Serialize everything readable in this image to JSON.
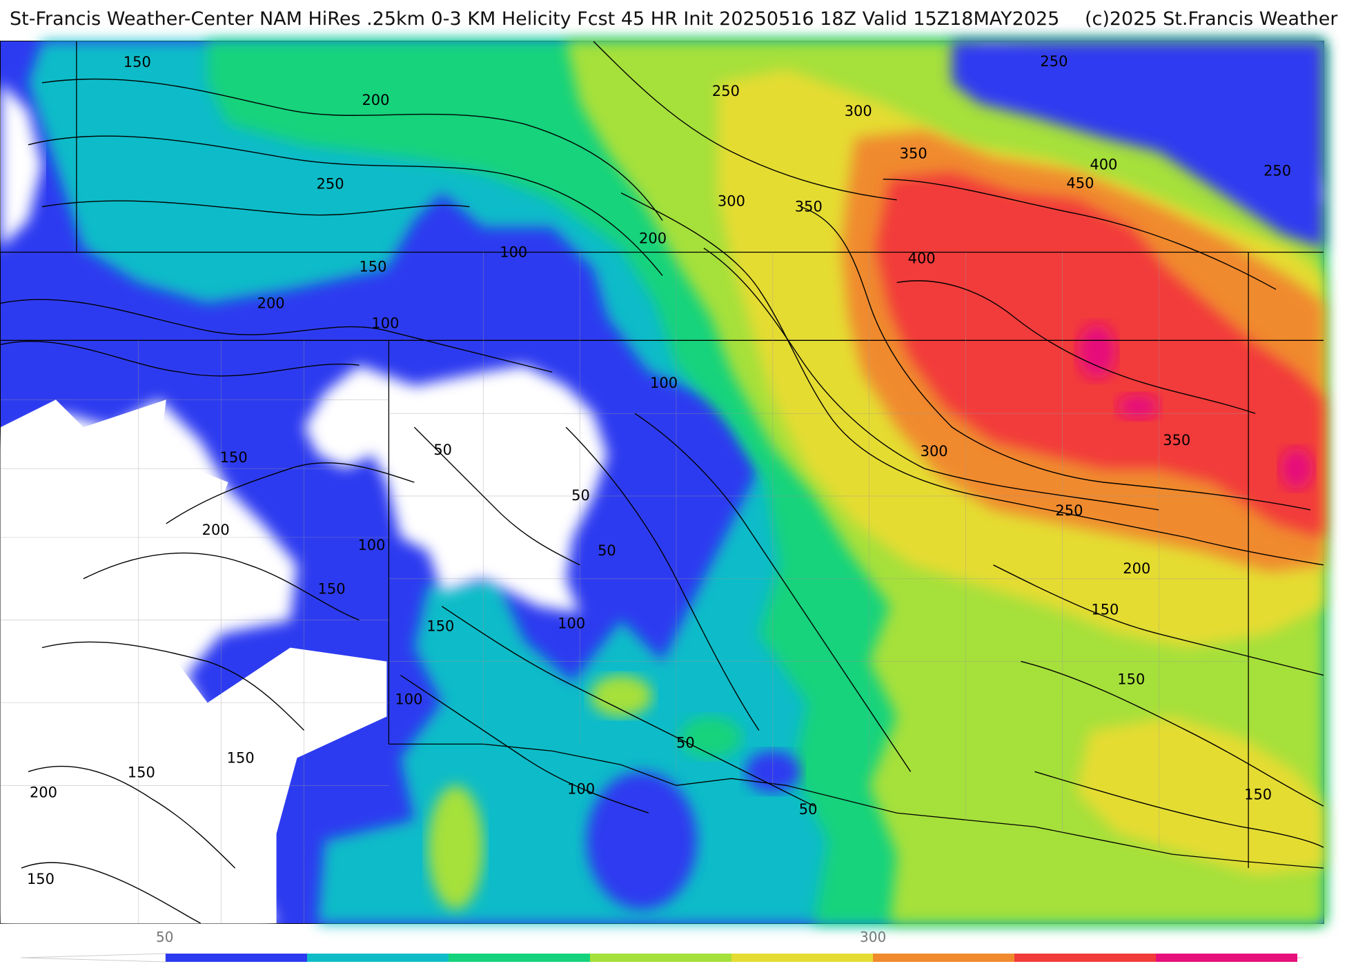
{
  "header": {
    "title_main": "St-Francis Weather-Center NAM HiRes .25km 0-3 KM Helicity Fcst 45 HR Init 20250516 18Z  Valid 15Z18MAY2025",
    "copyright": "(c)2025 St.Francis Weather"
  },
  "legend": {
    "ticks": [
      {
        "value": "50"
      },
      {
        "value": "300"
      }
    ],
    "bins": [
      {
        "from": 50,
        "to": 100,
        "color": "#2d3bf0"
      },
      {
        "from": 100,
        "to": 150,
        "color": "#0ebcc8"
      },
      {
        "from": 150,
        "to": 200,
        "color": "#14d37c"
      },
      {
        "from": 200,
        "to": 250,
        "color": "#a6e03a"
      },
      {
        "from": 250,
        "to": 300,
        "color": "#e5dc33"
      },
      {
        "from": 300,
        "to": 350,
        "color": "#f08a2d"
      },
      {
        "from": 350,
        "to": 400,
        "color": "#f23b3b"
      },
      {
        "from": 400,
        "to": 450,
        "color": "#e6107a"
      }
    ]
  },
  "map": {
    "contour_labels": [
      "150",
      "200",
      "250",
      "100",
      "150",
      "200",
      "100",
      "250",
      "300",
      "200",
      "300",
      "350",
      "350",
      "400",
      "450",
      "400",
      "250",
      "250",
      "100",
      "150",
      "200",
      "50",
      "50",
      "50",
      "100",
      "150",
      "150",
      "100",
      "100",
      "300",
      "350",
      "250",
      "200",
      "150",
      "150",
      "100",
      "50",
      "50",
      "150",
      "150",
      "200",
      "150",
      "150"
    ]
  }
}
